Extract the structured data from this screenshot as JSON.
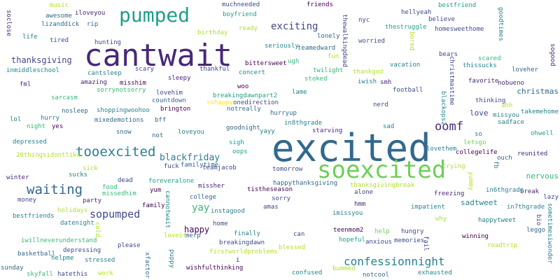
{
  "palette": [
    "#440154",
    "#482878",
    "#3e4989",
    "#31688e",
    "#26828e",
    "#1f9e89",
    "#35b779",
    "#6ece58",
    "#b5de2b",
    "#fde725"
  ],
  "words": [
    {
      "text": "cantwait",
      "c": "#482878"
    },
    {
      "text": "excited",
      "c": "#31688e"
    },
    {
      "text": "soexcited",
      "c": "#6ece58"
    },
    {
      "text": "pumped",
      "c": "#1f9e89"
    },
    {
      "text": "tooexcited",
      "c": "#26828e"
    },
    {
      "text": "waiting",
      "c": "#31688e"
    },
    {
      "text": "oomf",
      "c": "#482878"
    },
    {
      "text": "confessionnight",
      "c": "#26828e"
    },
    {
      "text": "sopumped",
      "c": "#3e4989"
    },
    {
      "text": "exciting",
      "c": "#3e4989"
    },
    {
      "text": "thanksgiving",
      "c": "#3e4989"
    },
    {
      "text": "blackfriday",
      "c": "#26828e"
    },
    {
      "text": "yay",
      "c": "#35b779"
    },
    {
      "text": "happy",
      "c": "#440154"
    },
    {
      "text": "christmas",
      "c": "#31688e"
    },
    {
      "text": "nervous",
      "c": "#35b779"
    },
    {
      "text": "sadtweet",
      "c": "#26828e"
    },
    {
      "text": "love",
      "c": "#3e4989"
    },
    {
      "text": "muchneeded",
      "c": "#3e4989"
    },
    {
      "text": "friends",
      "c": "#440154"
    },
    {
      "text": "boyfriend",
      "c": "#1f9e89"
    },
    {
      "text": "iloveyou",
      "c": "#482878"
    },
    {
      "text": "awesome",
      "c": "#31688e"
    },
    {
      "text": "music",
      "c": "#b5de2b"
    },
    {
      "text": "lizanddick",
      "c": "#31688e"
    },
    {
      "text": "rip",
      "c": "#31688e"
    },
    {
      "text": "life",
      "c": "#26828e"
    },
    {
      "text": "tired",
      "c": "#3e4989"
    },
    {
      "text": "hunting",
      "c": "#3e4989"
    },
    {
      "text": "birthday",
      "c": "#b5de2b"
    },
    {
      "text": "ready",
      "c": "#b5de2b"
    },
    {
      "text": "lonely",
      "c": "#31688e"
    },
    {
      "text": "teamedward",
      "c": "#31688e"
    },
    {
      "text": "seriously",
      "c": "#26828e"
    },
    {
      "text": "bittersweet",
      "c": "#440154"
    },
    {
      "text": "ugh",
      "c": "#35b779"
    },
    {
      "text": "inmiddleschool",
      "c": "#26828e"
    },
    {
      "text": "scary",
      "c": "#3e4989"
    },
    {
      "text": "thankful",
      "c": "#3e4989"
    },
    {
      "text": "concert",
      "c": "#26828e"
    },
    {
      "text": "fun",
      "c": "#b5de2b"
    },
    {
      "text": "twilight",
      "c": "#35b779"
    },
    {
      "text": "stoked",
      "c": "#35b779"
    },
    {
      "text": "cantsleep",
      "c": "#26828e"
    },
    {
      "text": "sleepy",
      "c": "#482878"
    },
    {
      "text": "amazing",
      "c": "#482878"
    },
    {
      "text": "misshim",
      "c": "#440154"
    },
    {
      "text": "fml",
      "c": "#482878"
    },
    {
      "text": "sorrynotsorry",
      "c": "#35b779"
    },
    {
      "text": "woo",
      "c": "#440154"
    },
    {
      "text": "lovehim",
      "c": "#3e4989"
    },
    {
      "text": "countdown",
      "c": "#31688e"
    },
    {
      "text": "breakingdawnpart2",
      "c": "#1f9e89"
    },
    {
      "text": "sohappy",
      "c": "#fde725"
    },
    {
      "text": "onedirection",
      "c": "#3e4989"
    },
    {
      "text": "notreally",
      "c": "#31688e"
    },
    {
      "text": "lame",
      "c": "#26828e"
    },
    {
      "text": "sarcasm",
      "c": "#35b779"
    },
    {
      "text": "nosleep",
      "c": "#31688e"
    },
    {
      "text": "shoppingwoohoo",
      "c": "#26828e"
    },
    {
      "text": "mixedemotions",
      "c": "#31688e"
    },
    {
      "text": "bff",
      "c": "#31688e"
    },
    {
      "text": "brington",
      "c": "#440154"
    },
    {
      "text": "hurryup",
      "c": "#31688e"
    },
    {
      "text": "in8thgrade",
      "c": "#26828e"
    },
    {
      "text": "goodnight",
      "c": "#31688e"
    },
    {
      "text": "yayy",
      "c": "#26828e"
    },
    {
      "text": "starving",
      "c": "#482878"
    },
    {
      "text": "lol",
      "c": "#26828e"
    },
    {
      "text": "hurry",
      "c": "#26828e"
    },
    {
      "text": "night",
      "c": "#35b779"
    },
    {
      "text": "yes",
      "c": "#440154"
    },
    {
      "text": "snow",
      "c": "#31688e"
    },
    {
      "text": "not",
      "c": "#31688e"
    },
    {
      "text": "loveyou",
      "c": "#26828e"
    },
    {
      "text": "sigh",
      "c": "#1f9e89"
    },
    {
      "text": "oops",
      "c": "#1f9e89"
    },
    {
      "text": "depressed",
      "c": "#26828e"
    },
    {
      "text": "20thingsidontlike",
      "c": "#b5de2b"
    },
    {
      "text": "familytime",
      "c": "#31688e"
    },
    {
      "text": "fuck",
      "c": "#3e4989"
    },
    {
      "text": "teamjacob",
      "c": "#3e4989"
    },
    {
      "text": "tomorrow",
      "c": "#3e4989"
    },
    {
      "text": "sick",
      "c": "#b5de2b"
    },
    {
      "text": "sucks",
      "c": "#26828e"
    },
    {
      "text": "dead",
      "c": "#3e4989"
    },
    {
      "text": "foreveralone",
      "c": "#1f9e89"
    },
    {
      "text": "winter",
      "c": "#482878"
    },
    {
      "text": "food",
      "c": "#35b779"
    },
    {
      "text": "missedhim",
      "c": "#35b779"
    },
    {
      "text": "yum",
      "c": "#440154"
    },
    {
      "text": "missher",
      "c": "#482878"
    },
    {
      "text": "happythanksgiving",
      "c": "#31688e"
    },
    {
      "text": "thanksgivingbreak",
      "c": "#b5de2b"
    },
    {
      "text": "tistheseason",
      "c": "#440154"
    },
    {
      "text": "alone",
      "c": "#3e4989"
    },
    {
      "text": "money",
      "c": "#3e4989"
    },
    {
      "text": "party",
      "c": "#482878"
    },
    {
      "text": "college",
      "c": "#31688e"
    },
    {
      "text": "sorry",
      "c": "#3e4989"
    },
    {
      "text": "instagood",
      "c": "#26828e"
    },
    {
      "text": "amas",
      "c": "#3e4989"
    },
    {
      "text": "hmm",
      "c": "#482878"
    },
    {
      "text": "bestfriends",
      "c": "#26828e"
    },
    {
      "text": "holidays",
      "c": "#b5de2b"
    },
    {
      "text": "datenight",
      "c": "#26828e"
    },
    {
      "text": "family",
      "c": "#440154"
    },
    {
      "text": "home",
      "c": "#3e4989"
    },
    {
      "text": "imissyou",
      "c": "#26828e"
    },
    {
      "text": "impatient",
      "c": "#26828e"
    },
    {
      "text": "iwillneverunderstand",
      "c": "#35b779"
    },
    {
      "text": "finally",
      "c": "#26828e"
    },
    {
      "text": "teenmom2",
      "c": "#440154"
    },
    {
      "text": "help",
      "c": "#6ece58"
    },
    {
      "text": "hungry",
      "c": "#3e4989"
    },
    {
      "text": "basketball",
      "c": "#31688e"
    },
    {
      "text": "depressing",
      "c": "#3e4989"
    },
    {
      "text": "please",
      "c": "#3e4989"
    },
    {
      "text": "loveit",
      "c": "#b5de2b"
    },
    {
      "text": "merp",
      "c": "#31688e"
    },
    {
      "text": "breakingdawn",
      "c": "#3e4989"
    },
    {
      "text": "can",
      "c": "#3e4989"
    },
    {
      "text": "hopeful",
      "c": "#1f9e89"
    },
    {
      "text": "anxious",
      "c": "#3e4989"
    },
    {
      "text": "blessed",
      "c": "#b5de2b"
    },
    {
      "text": "helpme",
      "c": "#26828e"
    },
    {
      "text": "stressed",
      "c": "#26828e"
    },
    {
      "text": "firstworldproblems",
      "c": "#b5de2b"
    },
    {
      "text": "i",
      "c": "#482878"
    },
    {
      "text": "sunday",
      "c": "#31688e"
    },
    {
      "text": "skyfall",
      "c": "#35b779"
    },
    {
      "text": "hatethis",
      "c": "#3e4989"
    },
    {
      "text": "work",
      "c": "#b5de2b"
    },
    {
      "text": "wishfulthinking",
      "c": "#440154"
    },
    {
      "text": "confused",
      "c": "#26828e"
    },
    {
      "text": "bummed",
      "c": "#b5de2b"
    },
    {
      "text": "notcool",
      "c": "#31688e"
    },
    {
      "text": "exhausted",
      "c": "#26828e"
    },
    {
      "text": "hellyeah",
      "c": "#3e4989"
    },
    {
      "text": "bestfriend",
      "c": "#1f9e89"
    },
    {
      "text": "believe",
      "c": "#3e4989"
    },
    {
      "text": "nyc",
      "c": "#3e4989"
    },
    {
      "text": "thestruggle",
      "c": "#1f9e89"
    },
    {
      "text": "worried",
      "c": "#3e4989"
    },
    {
      "text": "homesweethome",
      "c": "#3e4989"
    },
    {
      "text": "vacation",
      "c": "#26828e"
    },
    {
      "text": "bears",
      "c": "#3e4989"
    },
    {
      "text": "thissucks",
      "c": "#26828e"
    },
    {
      "text": "scared",
      "c": "#35b779"
    },
    {
      "text": "thankgod",
      "c": "#b5de2b"
    },
    {
      "text": "iwish",
      "c": "#26828e"
    },
    {
      "text": "smh",
      "c": "#482878"
    },
    {
      "text": "loveher",
      "c": "#31688e"
    },
    {
      "text": "favorite",
      "c": "#482878"
    },
    {
      "text": "nobueno",
      "c": "#482878"
    },
    {
      "text": "football",
      "c": "#3e4989"
    },
    {
      "text": "thinking",
      "c": "#3e4989"
    },
    {
      "text": "nerd",
      "c": "#3e4989"
    },
    {
      "text": "ahh",
      "c": "#b5de2b"
    },
    {
      "text": "missyou",
      "c": "#26828e"
    },
    {
      "text": "takemehome",
      "c": "#26828e"
    },
    {
      "text": "sad",
      "c": "#26828e"
    },
    {
      "text": "sadface",
      "c": "#26828e"
    },
    {
      "text": "so",
      "c": "#26828e"
    },
    {
      "text": "ohwell",
      "c": "#1f9e89"
    },
    {
      "text": "letsgo",
      "c": "#6ece58"
    },
    {
      "text": "lovethem",
      "c": "#26828e"
    },
    {
      "text": "collegelife",
      "c": "#440154"
    },
    {
      "text": "reunited",
      "c": "#482878"
    },
    {
      "text": "ouch",
      "c": "#31688e"
    },
    {
      "text": "crying",
      "c": "#b5de2b"
    },
    {
      "text": "break",
      "c": "#482878"
    },
    {
      "text": "in6thgrade",
      "c": "#26828e"
    },
    {
      "text": "freezing",
      "c": "#482878"
    },
    {
      "text": "lazy",
      "c": "#3e4989"
    },
    {
      "text": "in7thgrade",
      "c": "#26828e"
    },
    {
      "text": "why",
      "c": "#b5de2b"
    },
    {
      "text": "happytweet",
      "c": "#26828e"
    },
    {
      "text": "memories",
      "c": "#3e4989"
    },
    {
      "text": "winning",
      "c": "#440154"
    },
    {
      "text": "leggo",
      "c": "#31688e"
    },
    {
      "text": "roadtrip",
      "c": "#b5de2b"
    },
    {
      "text": "soclose",
      "c": "#482878",
      "v": true
    },
    {
      "text": "thewalkingdead",
      "c": "#3e4989",
      "v": true
    },
    {
      "text": "bored",
      "c": "#b5de2b",
      "v": true
    },
    {
      "text": "christmastime",
      "c": "#3e4989",
      "v": true
    },
    {
      "text": "goodtimes",
      "c": "#26828e",
      "v": true
    },
    {
      "text": "sogood",
      "c": "#482878",
      "v": true
    },
    {
      "text": "blackops2",
      "c": "#26828e",
      "v": true
    },
    {
      "text": "fb",
      "c": "#26828e",
      "v": true
    },
    {
      "text": "yummy",
      "c": "#b5de2b",
      "v": true
    },
    {
      "text": "cannotwait",
      "c": "#26828e",
      "v": true
    },
    {
      "text": "cold",
      "c": "#b5de2b",
      "v": true
    },
    {
      "text": "puppy",
      "c": "#26828e",
      "v": true
    },
    {
      "text": "xfactor",
      "c": "#31688e",
      "v": true
    },
    {
      "text": "fail",
      "c": "#3e4989",
      "v": true
    },
    {
      "text": "bio",
      "c": "#3e4989",
      "v": true
    },
    {
      "text": "sometimesiwonder",
      "c": "#26828e",
      "v": true
    }
  ]
}
